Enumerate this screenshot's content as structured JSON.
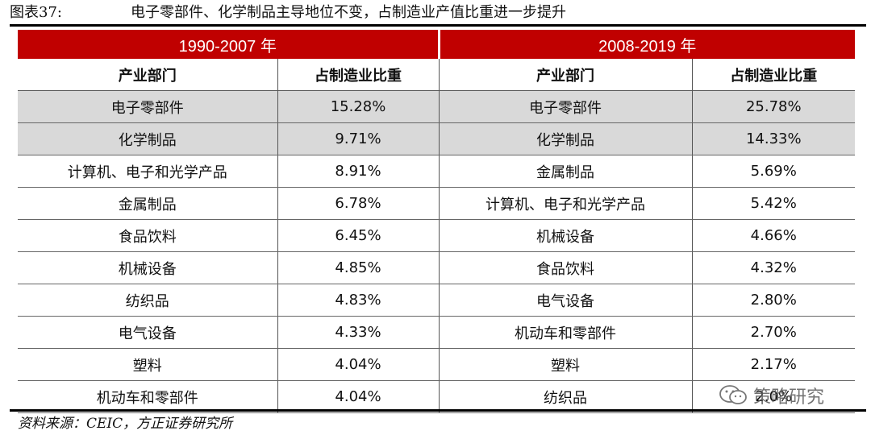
{
  "title": {
    "figure_label": "图表37:",
    "text": "电子零部件、化学制品主导地位不变，占制造业产值比重进一步提升"
  },
  "periods": [
    "1990-2007 年",
    "2008-2019 年"
  ],
  "headers": {
    "sector": "产业部门",
    "share": "占制造业比重"
  },
  "rows": [
    {
      "s1": "电子零部件",
      "v1": "15.28%",
      "s2": "电子零部件",
      "v2": "25.78%"
    },
    {
      "s1": "化学制品",
      "v1": "9.71%",
      "s2": "化学制品",
      "v2": "14.33%"
    },
    {
      "s1": "计算机、电子和光学产品",
      "v1": "8.91%",
      "s2": "金属制品",
      "v2": "5.69%"
    },
    {
      "s1": "金属制品",
      "v1": "6.78%",
      "s2": "计算机、电子和光学产品",
      "v2": "5.42%"
    },
    {
      "s1": "食品饮料",
      "v1": "6.45%",
      "s2": "机械设备",
      "v2": "4.66%"
    },
    {
      "s1": "机械设备",
      "v1": "4.85%",
      "s2": "食品饮料",
      "v2": "4.32%"
    },
    {
      "s1": "纺织品",
      "v1": "4.83%",
      "s2": "电气设备",
      "v2": "2.80%"
    },
    {
      "s1": "电气设备",
      "v1": "4.33%",
      "s2": "机动车和零部件",
      "v2": "2.70%"
    },
    {
      "s1": "塑料",
      "v1": "4.04%",
      "s2": "塑料",
      "v2": "2.17%"
    },
    {
      "s1": "机动车和零部件",
      "v1": "4.04%",
      "s2": "纺织品",
      "v2": "2.0%"
    }
  ],
  "source": "资料来源：CEIC，方正证券研究所",
  "watermark": {
    "icon": "wechat-icon",
    "text": "策略研究"
  },
  "colors": {
    "header_red": "#c00000",
    "shade_gray": "#d9d9d9"
  }
}
